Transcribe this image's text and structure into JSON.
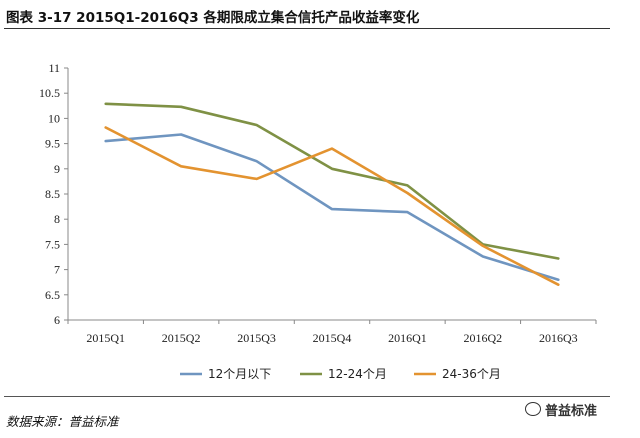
{
  "header": {
    "title": "图表 3-17 2015Q1-2016Q3 各期限成立集合信托产品收益率变化"
  },
  "footer": {
    "source": "数据来源：普益标准",
    "watermark": "普益标准"
  },
  "chart_data": {
    "type": "line",
    "title": "",
    "xlabel": "",
    "ylabel": "",
    "categories": [
      "2015Q1",
      "2015Q2",
      "2015Q3",
      "2015Q4",
      "2016Q1",
      "2016Q2",
      "2016Q3"
    ],
    "yticks": [
      "6",
      "6.5",
      "7",
      "7.5",
      "8",
      "8.5",
      "9",
      "9.5",
      "10",
      "10.5",
      "11"
    ],
    "ylim": [
      6,
      11
    ],
    "grid": false,
    "legend_position": "bottom",
    "series": [
      {
        "name": "12个月以下",
        "color": "#6f95c0",
        "values": [
          9.55,
          9.68,
          9.15,
          8.2,
          8.14,
          7.26,
          6.8
        ]
      },
      {
        "name": "12-24个月",
        "color": "#7f9145",
        "values": [
          10.29,
          10.23,
          9.87,
          9.0,
          8.67,
          7.5,
          7.22
        ]
      },
      {
        "name": "24-36个月",
        "color": "#e39330",
        "values": [
          9.82,
          9.05,
          8.8,
          9.4,
          8.52,
          7.47,
          6.7
        ]
      }
    ]
  }
}
